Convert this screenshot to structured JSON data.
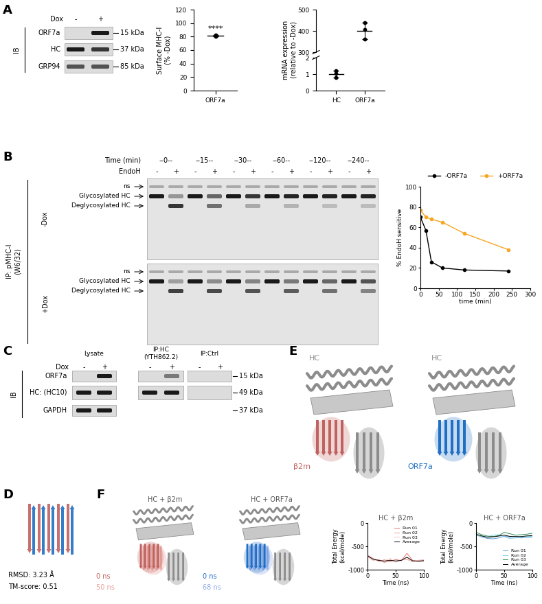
{
  "panels": {
    "A": {
      "label": "A",
      "ib": "IB",
      "header": "Dox",
      "lanes": [
        "-",
        "+"
      ],
      "rows": [
        {
          "name": "ORF7a",
          "size": "15 kDa",
          "bands": [
            0,
            1
          ]
        },
        {
          "name": "HC",
          "size": "37 kDa",
          "bands": [
            1,
            0.85
          ]
        },
        {
          "name": "GRP94",
          "size": "85 kDa",
          "bands": [
            0.7,
            0.7
          ]
        }
      ]
    },
    "B": {
      "label": "B",
      "ip": "IP: pMHC-I\n(W6/32)",
      "time_header": "Time (min)",
      "times": [
        "--0--",
        "--15--",
        "--30--",
        "--60--",
        "--120--",
        "--240--"
      ],
      "endoh_header": "EndoH",
      "endoh_lanes": [
        "-",
        "+"
      ],
      "band_labels": [
        "ns",
        "Glycosylated HC",
        "Deglycosylated HC"
      ],
      "gels": [
        {
          "name": "-Dox",
          "glycosylated": [
            1,
            0.35,
            1,
            0.6,
            1,
            0.85,
            1,
            0.95,
            1,
            0.95,
            1,
            0.95
          ],
          "deglycosylated": [
            0,
            0.85,
            0,
            0.55,
            0,
            0.25,
            0,
            0.2,
            0,
            0.15,
            0,
            0.15
          ]
        },
        {
          "name": "+Dox",
          "glycosylated": [
            1,
            0.3,
            1,
            0.4,
            1,
            0.45,
            1,
            0.5,
            1,
            0.6,
            1,
            0.7
          ],
          "deglycosylated": [
            0,
            0.8,
            0,
            0.75,
            0,
            0.7,
            0,
            0.65,
            0,
            0.55,
            0,
            0.45
          ]
        }
      ]
    },
    "C": {
      "label": "C",
      "ib": "IB",
      "header": "Dox",
      "groups": [
        {
          "name": "Lysate",
          "lanes": [
            "-",
            "+"
          ]
        },
        {
          "name": "IP:HC\n(YTH862.2)",
          "lanes": [
            "-",
            "+"
          ]
        },
        {
          "name": "IP:Ctrl",
          "lanes": [
            "-",
            "+"
          ]
        }
      ],
      "rows": [
        {
          "name": "ORF7a",
          "size": "15 kDa",
          "bands": [
            0,
            1,
            0,
            0.5,
            0,
            0
          ]
        },
        {
          "name": "HC: (HC10)",
          "size": "49 kDa",
          "bands": [
            1,
            1,
            1,
            1,
            0,
            0
          ]
        },
        {
          "name": "GAPDH",
          "size": "37 kDa",
          "bands": [
            1,
            1,
            null,
            null,
            null,
            null
          ]
        }
      ]
    },
    "D": {
      "label": "D",
      "rmsd": "RMSD: 3.23 Å",
      "tm": "TM-score: 0.51",
      "colors": [
        "#c0625f",
        "#1f6fc5"
      ]
    },
    "E": {
      "label": "E",
      "hc_color": "#8c8c8c",
      "structures": [
        {
          "hc": "HC",
          "partner": "β2m",
          "color": "#c0625f"
        },
        {
          "hc": "HC",
          "partner": "ORF7a",
          "color": "#1f6fc5"
        }
      ]
    },
    "F": {
      "label": "F",
      "structures": [
        {
          "title": "HC + β2m",
          "colors": [
            "#c0625f",
            "#e8a09a"
          ],
          "times": [
            "0 ns",
            "50 ns"
          ]
        },
        {
          "title": "HC + ORF7a",
          "colors": [
            "#1f6fc5",
            "#8fa8e8"
          ],
          "times": [
            "0 ns",
            "68 ns"
          ]
        }
      ]
    }
  },
  "chart_data": [
    {
      "type": "dot",
      "ylabel": "Surface MHC-I\n(% -Dox)",
      "categories": [
        "ORF7a"
      ],
      "points": [
        [
          80.5,
          81.3,
          82.1
        ]
      ],
      "values": [
        81.3
      ],
      "error": [
        0.8
      ],
      "annotation": "****",
      "ylim": [
        0,
        120
      ],
      "yticks": [
        0,
        20,
        40,
        60,
        80,
        100,
        120
      ],
      "color": "#000000"
    },
    {
      "type": "dot",
      "ylabel": "mRNA expression\n(relative to -Dox)",
      "categories": [
        "HC",
        "ORF7a"
      ],
      "points": [
        [
          0.8,
          1.05,
          1.2
        ],
        [
          360,
          405,
          440
        ]
      ],
      "values": [
        1.0,
        400
      ],
      "error": [
        0.2,
        40
      ],
      "segments": [
        {
          "ylim": [
            300,
            500
          ],
          "yticks": [
            300,
            400,
            500
          ]
        },
        {
          "ylim": [
            0,
            2
          ],
          "yticks": [
            0,
            1,
            2
          ]
        }
      ],
      "color": "#000000"
    },
    {
      "type": "line",
      "xlabel": "time (min)",
      "ylabel": "% EndoH sensitive",
      "x": [
        0,
        15,
        30,
        60,
        120,
        240
      ],
      "series": [
        {
          "name": "-ORF7a",
          "color": "#000000",
          "marker": "o",
          "values": [
            70,
            57,
            26,
            20,
            18,
            17
          ]
        },
        {
          "name": "+ORF7a",
          "color": "#f5a623",
          "marker": "o",
          "values": [
            77,
            70,
            68,
            65,
            54,
            38
          ]
        }
      ],
      "xlim": [
        0,
        300
      ],
      "xticks": [
        0,
        50,
        100,
        150,
        200,
        250,
        300
      ],
      "ylim": [
        0,
        100
      ],
      "yticks": [
        0,
        20,
        40,
        60,
        80,
        100
      ],
      "legend": "top"
    },
    {
      "type": "line",
      "title": "HC + β2m",
      "xlabel": "Time (ns)",
      "ylabel": "Total Energy\n(kcal/mole)",
      "x": [
        0,
        10,
        20,
        30,
        40,
        50,
        60,
        70,
        80,
        90,
        100
      ],
      "series": [
        {
          "name": "Run 01",
          "color": "#e8736b",
          "values": [
            -700,
            -760,
            -820,
            -790,
            -830,
            -780,
            -810,
            -650,
            -800,
            -820,
            -810
          ]
        },
        {
          "name": "Run 02",
          "color": "#f2a09a",
          "values": [
            -720,
            -800,
            -780,
            -850,
            -800,
            -820,
            -790,
            -780,
            -830,
            -800,
            -790
          ]
        },
        {
          "name": "Run 03",
          "color": "#f7c6c0",
          "values": [
            -680,
            -770,
            -800,
            -810,
            -760,
            -840,
            -800,
            -770,
            -800,
            -830,
            -820
          ]
        },
        {
          "name": "Average",
          "color": "#000000",
          "values": [
            -700,
            -777,
            -800,
            -817,
            -797,
            -813,
            -800,
            -733,
            -810,
            -817,
            -807
          ]
        }
      ],
      "xlim": [
        0,
        100
      ],
      "xticks": [
        0,
        50,
        100
      ],
      "ylim": [
        -1000,
        0
      ],
      "yticks": [
        -1000,
        -500,
        0
      ],
      "legend": "upper right"
    },
    {
      "type": "line",
      "title": "HC + ORF7a",
      "xlabel": "Time (ns)",
      "ylabel": "Total Energy\n(kcal/mole)",
      "x": [
        0,
        10,
        20,
        30,
        40,
        50,
        60,
        70,
        80,
        90,
        100
      ],
      "series": [
        {
          "name": "Run 01",
          "color": "#5b9bd5",
          "values": [
            -250,
            -300,
            -330,
            -340,
            -320,
            -280,
            -300,
            -290,
            -320,
            -310,
            -300
          ]
        },
        {
          "name": "Run 02",
          "color": "#7fd3e6",
          "values": [
            -270,
            -280,
            -300,
            -260,
            -250,
            -300,
            -330,
            -320,
            -300,
            -280,
            -290
          ]
        },
        {
          "name": "Run 03",
          "color": "#2e8b57",
          "values": [
            -200,
            -250,
            -280,
            -290,
            -270,
            -200,
            -230,
            -260,
            -250,
            -240,
            -220
          ]
        },
        {
          "name": "Average",
          "color": "#000000",
          "values": [
            -240,
            -277,
            -303,
            -297,
            -280,
            -260,
            -287,
            -290,
            -290,
            -277,
            -270
          ]
        }
      ],
      "xlim": [
        0,
        100
      ],
      "xticks": [
        0,
        50,
        100
      ],
      "ylim": [
        -1000,
        0
      ],
      "yticks": [
        -1000,
        -500,
        0
      ],
      "legend": "lower right"
    }
  ]
}
